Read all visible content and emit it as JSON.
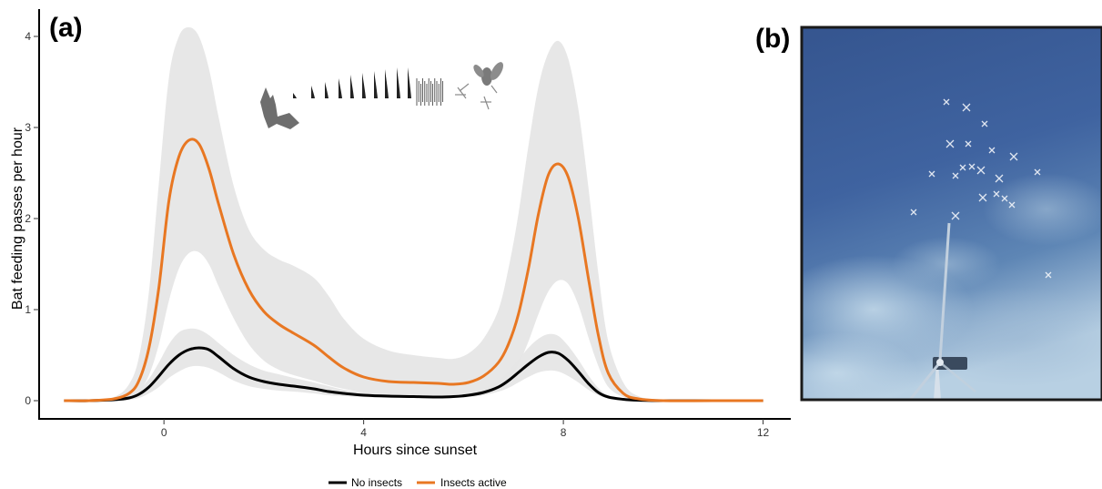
{
  "panels": {
    "a_label": "(a)",
    "b_label": "(b)"
  },
  "chart_data": {
    "type": "line",
    "title": "",
    "xlabel": "Hours since sunset",
    "ylabel": "Bat feeding passes per hour",
    "xlim": [
      -2.5,
      12.5
    ],
    "ylim": [
      -0.2,
      4.3
    ],
    "xticks": [
      0,
      4,
      8,
      12
    ],
    "yticks": [
      0,
      1,
      2,
      3,
      4
    ],
    "grid": false,
    "legend_position": "bottom",
    "x": [
      -2,
      -1.5,
      -1,
      -0.7,
      -0.5,
      -0.3,
      -0.1,
      0.1,
      0.3,
      0.5,
      0.7,
      0.9,
      1.1,
      1.4,
      1.7,
      2,
      2.3,
      2.6,
      3,
      3.3,
      3.6,
      4,
      4.5,
      5,
      5.5,
      5.8,
      6.1,
      6.4,
      6.7,
      6.9,
      7.1,
      7.3,
      7.5,
      7.7,
      7.9,
      8.1,
      8.3,
      8.5,
      8.7,
      8.9,
      9.2,
      9.5,
      10,
      11,
      12
    ],
    "series": [
      {
        "name": "No insects",
        "color": "#000000",
        "values": [
          0,
          0,
          0.01,
          0.03,
          0.07,
          0.15,
          0.27,
          0.4,
          0.5,
          0.56,
          0.58,
          0.56,
          0.48,
          0.35,
          0.26,
          0.21,
          0.18,
          0.16,
          0.13,
          0.1,
          0.08,
          0.06,
          0.05,
          0.045,
          0.04,
          0.045,
          0.06,
          0.09,
          0.15,
          0.22,
          0.31,
          0.4,
          0.48,
          0.53,
          0.52,
          0.44,
          0.32,
          0.19,
          0.09,
          0.04,
          0.015,
          0.005,
          0,
          0,
          0
        ],
        "ci_upper": [
          0,
          0,
          0.02,
          0.05,
          0.12,
          0.24,
          0.42,
          0.62,
          0.75,
          0.79,
          0.78,
          0.72,
          0.63,
          0.5,
          0.4,
          0.33,
          0.29,
          0.25,
          0.2,
          0.16,
          0.12,
          0.09,
          0.07,
          0.065,
          0.06,
          0.065,
          0.08,
          0.13,
          0.22,
          0.32,
          0.45,
          0.58,
          0.68,
          0.73,
          0.71,
          0.6,
          0.45,
          0.28,
          0.14,
          0.06,
          0.02,
          0.01,
          0,
          0,
          0
        ],
        "ci_lower": [
          0,
          0,
          0,
          0.01,
          0.03,
          0.08,
          0.15,
          0.25,
          0.32,
          0.37,
          0.38,
          0.36,
          0.31,
          0.22,
          0.16,
          0.13,
          0.11,
          0.1,
          0.08,
          0.06,
          0.05,
          0.04,
          0.03,
          0.03,
          0.025,
          0.03,
          0.04,
          0.06,
          0.1,
          0.14,
          0.2,
          0.26,
          0.31,
          0.33,
          0.32,
          0.27,
          0.2,
          0.12,
          0.06,
          0.025,
          0.01,
          0,
          0,
          0,
          0
        ]
      },
      {
        "name": "Insects active",
        "color": "#E87722",
        "values": [
          0,
          0,
          0.02,
          0.08,
          0.22,
          0.58,
          1.25,
          2.2,
          2.68,
          2.86,
          2.82,
          2.55,
          2.15,
          1.6,
          1.22,
          0.98,
          0.84,
          0.74,
          0.61,
          0.48,
          0.36,
          0.26,
          0.21,
          0.2,
          0.19,
          0.18,
          0.2,
          0.27,
          0.42,
          0.62,
          0.95,
          1.45,
          2.05,
          2.48,
          2.6,
          2.45,
          2.0,
          1.35,
          0.72,
          0.3,
          0.08,
          0.02,
          0,
          0,
          0
        ],
        "ci_upper": [
          0,
          0,
          0.04,
          0.18,
          0.48,
          1.2,
          2.4,
          3.55,
          4.0,
          4.1,
          4.0,
          3.65,
          3.1,
          2.35,
          1.88,
          1.66,
          1.55,
          1.48,
          1.35,
          1.15,
          0.9,
          0.68,
          0.55,
          0.5,
          0.47,
          0.46,
          0.52,
          0.68,
          1.0,
          1.45,
          2.05,
          2.8,
          3.45,
          3.82,
          3.95,
          3.75,
          3.2,
          2.35,
          1.4,
          0.65,
          0.2,
          0.05,
          0.01,
          0,
          0
        ],
        "ci_lower": [
          0,
          0,
          0,
          0.03,
          0.1,
          0.28,
          0.62,
          1.1,
          1.45,
          1.62,
          1.63,
          1.5,
          1.25,
          0.9,
          0.62,
          0.44,
          0.34,
          0.28,
          0.22,
          0.17,
          0.13,
          0.09,
          0.07,
          0.06,
          0.05,
          0.05,
          0.06,
          0.09,
          0.15,
          0.24,
          0.4,
          0.65,
          0.95,
          1.2,
          1.32,
          1.28,
          1.05,
          0.7,
          0.38,
          0.15,
          0.04,
          0.01,
          0,
          0,
          0
        ]
      }
    ]
  },
  "ci_color": "#E6E6E6",
  "photo": {
    "sky_colors": [
      "#35558F",
      "#3F63A0",
      "#5E86B5",
      "#B8D0E3"
    ],
    "frame_color": "#1A1A1A"
  }
}
